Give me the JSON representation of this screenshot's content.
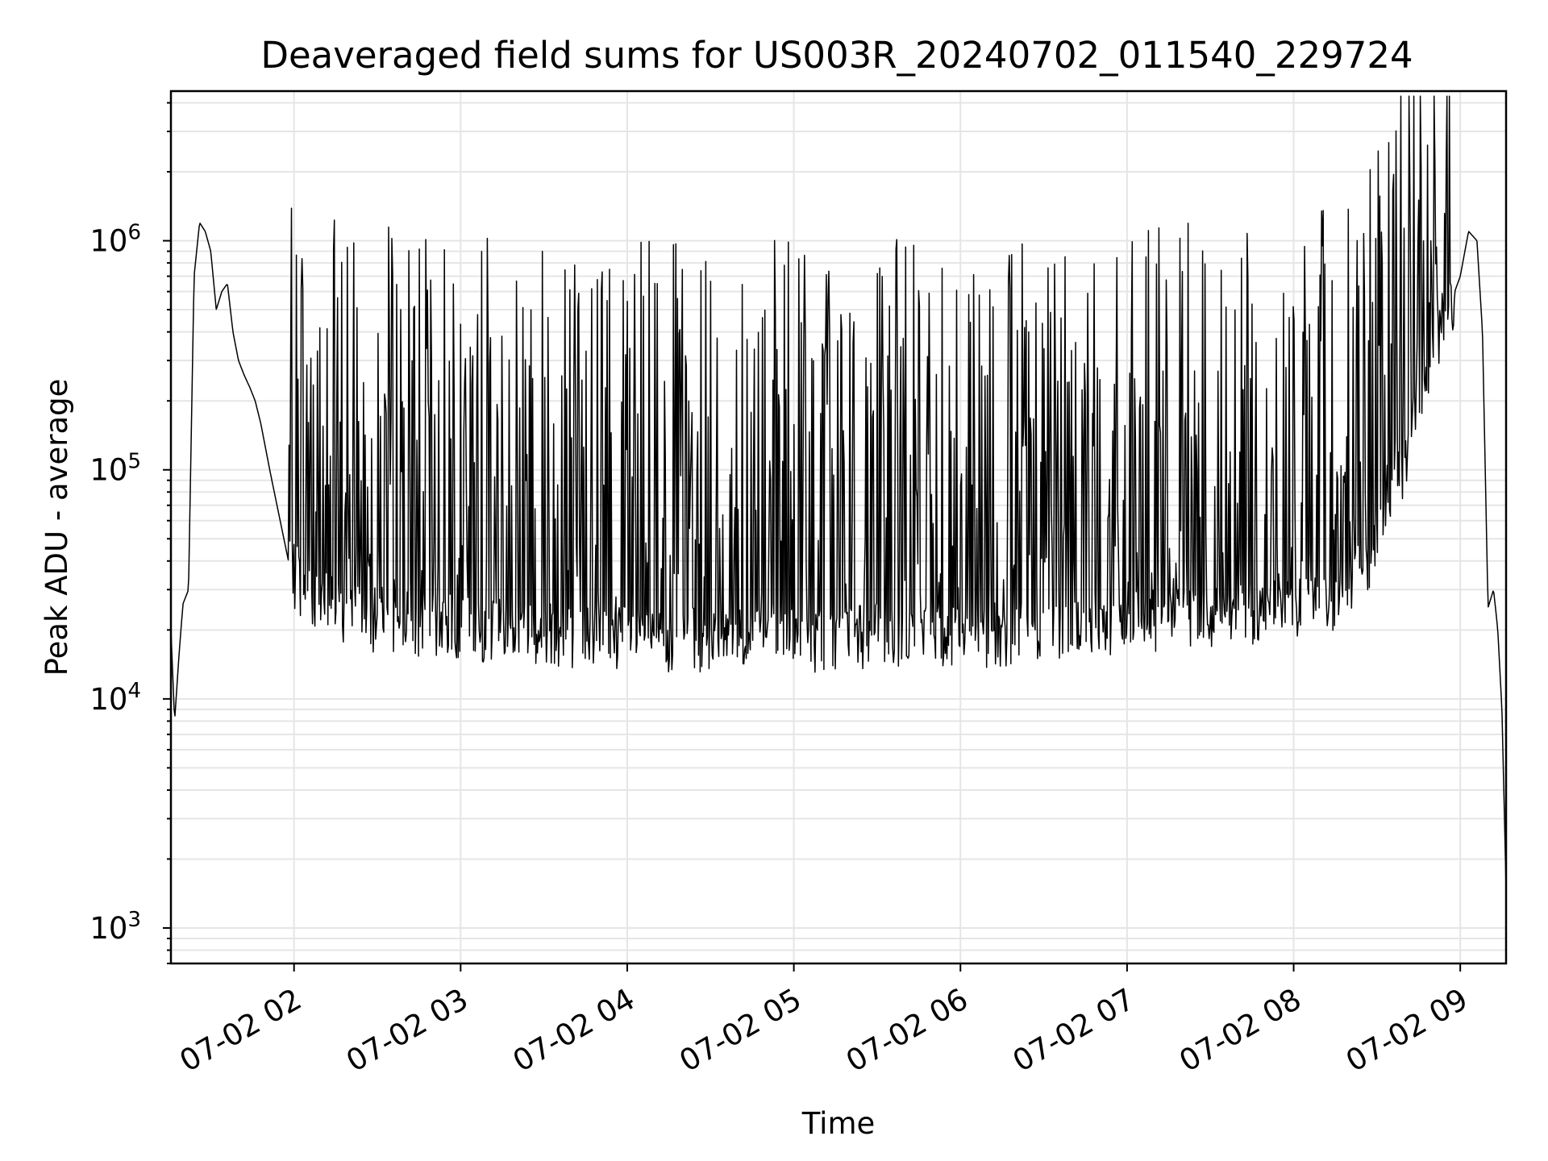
{
  "chart_data": {
    "type": "line",
    "title": "Deaveraged field sums for US003R_20240702_011540_229724",
    "xlabel": "Time",
    "ylabel": "Peak ADU - average",
    "x_scale": "time",
    "y_scale": "log",
    "xlim": [
      "07-02 01:15:40",
      "07-02 09:16:30"
    ],
    "ylim": [
      700,
      4500000
    ],
    "grid": true,
    "x_tick_labels": [
      "07-02 02",
      "07-02 03",
      "07-02 04",
      "07-02 05",
      "07-02 06",
      "07-02 07",
      "07-02 08",
      "07-02 09"
    ],
    "y_ticks": [
      {
        "base": "10",
        "exp": "3"
      },
      {
        "base": "10",
        "exp": "4"
      },
      {
        "base": "10",
        "exp": "5"
      },
      {
        "base": "10",
        "exp": "6"
      }
    ],
    "line_color": "#000000",
    "grid_color": "#e5e5e5",
    "series": [
      {
        "x": [
          "07-02 01:15:40",
          "07-02 01:17:00",
          "07-02 01:18:30",
          "07-02 01:20:00",
          "07-02 01:22:00",
          "07-02 01:24:00",
          "07-02 01:26:00",
          "07-02 01:28:00",
          "07-02 01:30:00",
          "07-02 01:32:00",
          "07-02 01:34:00",
          "07-02 01:36:00",
          "07-02 01:38:00",
          "07-02 01:40:00",
          "07-02 01:42:00",
          "07-02 01:44:00",
          "07-02 01:46:00",
          "07-02 01:48:00",
          "07-02 01:50:00",
          "07-02 01:52:00",
          "07-02 01:55:00",
          "07-02 01:58:00",
          "07-02 02:02:00",
          "07-02 02:07:00",
          "07-02 02:12:00",
          "07-02 02:18:00",
          "07-02 02:25:00",
          "07-02 02:35:00",
          "07-02 02:50:00",
          "07-02 03:10:00",
          "07-02 03:30:00",
          "07-02 03:50:00",
          "07-02 04:10:00",
          "07-02 04:30:00",
          "07-02 04:50:00",
          "07-02 05:10:00",
          "07-02 05:30:00",
          "07-02 05:50:00",
          "07-02 06:10:00",
          "07-02 06:30:00",
          "07-02 06:50:00",
          "07-02 07:10:00",
          "07-02 07:30:00",
          "07-02 07:50:00",
          "07-02 08:05:00",
          "07-02 08:15:00",
          "07-02 08:25:00",
          "07-02 08:32:00",
          "07-02 08:38:00",
          "07-02 08:44:00",
          "07-02 08:50:00",
          "07-02 08:55:00",
          "07-02 08:58:00",
          "07-02 09:00:00",
          "07-02 09:03:00",
          "07-02 09:06:00",
          "07-02 09:08:00",
          "07-02 09:10:00",
          "07-02 09:12:00",
          "07-02 09:13:30",
          "07-02 09:15:00",
          "07-02 09:16:30"
        ],
        "y": [
          20000,
          8000,
          15000,
          26000,
          30000,
          700000,
          1200000,
          1100000,
          900000,
          500000,
          600000,
          650000,
          400000,
          300000,
          260000,
          230000,
          200000,
          160000,
          120000,
          90000,
          60000,
          40000,
          35000,
          30000,
          28000,
          26000,
          25000,
          24000,
          23000,
          22000,
          21000,
          21000,
          20000,
          20000,
          20000,
          20000,
          21000,
          21000,
          21000,
          22000,
          23000,
          24000,
          25000,
          26000,
          28000,
          30000,
          40000,
          60000,
          100000,
          200000,
          350000,
          550000,
          600000,
          700000,
          1100000,
          1000000,
          400000,
          25000,
          30000,
          20000,
          9000,
          1500
        ]
      }
    ]
  }
}
